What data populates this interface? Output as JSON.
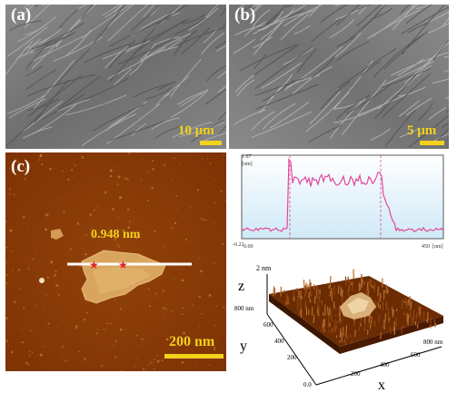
{
  "panels": {
    "a": {
      "label": "(a)",
      "scale": "10 μm"
    },
    "b": {
      "label": "(b)",
      "scale": "5 μm"
    },
    "c": {
      "label": "(c)",
      "scale": "200 nm",
      "height_annotation": "0.948 nm"
    }
  },
  "profile": {
    "y_top": "1.67",
    "y_unit": "[nm]",
    "y_bottom": "-0.22",
    "x_left": "0.00",
    "x_right": "450",
    "x_unit": "[nm]"
  },
  "surface3d": {
    "z_tick": "2 nm",
    "z_axis": "z",
    "y_axis": "y",
    "x_axis": "x",
    "y_ticks": [
      "800 nm",
      "600",
      "400",
      "200",
      "0.0"
    ],
    "x_ticks": [
      "200",
      "400",
      "600",
      "800 nm"
    ]
  },
  "colors": {
    "scale_yellow": "#f2d21b",
    "afm_brown": "#8a3a06",
    "profile_line": "#e2489a",
    "profile_fill_top": "#d6eef9"
  }
}
